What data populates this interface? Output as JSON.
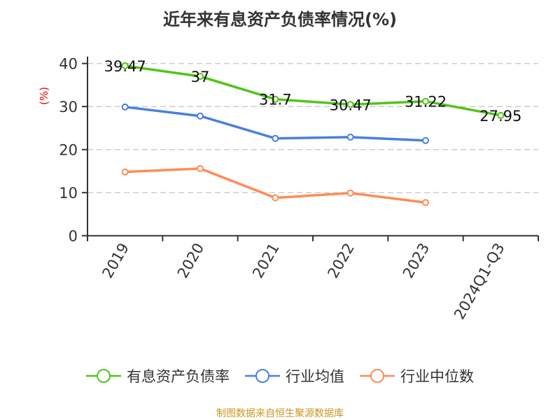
{
  "chart_data": {
    "type": "line",
    "title": "近年来有息资产负债率情况(%)",
    "ylabel": "(%)",
    "categories": [
      "2019",
      "2020",
      "2021",
      "2022",
      "2023",
      "2024Q1-Q3"
    ],
    "ylim": [
      0,
      40
    ],
    "yticks": [
      0,
      10,
      20,
      30,
      40
    ],
    "grid": true,
    "legend_position": "bottom",
    "series": [
      {
        "name": "有息资产负债率",
        "color": "#52c41a",
        "values": [
          39.47,
          37,
          31.7,
          30.47,
          31.22,
          27.95
        ],
        "labels": [
          "39.47",
          "37",
          "31.7",
          "30.47",
          "31.22",
          "27.95"
        ]
      },
      {
        "name": "行业均值",
        "color": "#4a7fe0",
        "values": [
          29.9,
          27.8,
          22.6,
          22.9,
          22.1,
          null
        ]
      },
      {
        "name": "行业中位数",
        "color": "#ff8c55",
        "values": [
          14.8,
          15.6,
          8.8,
          9.9,
          7.7,
          null
        ]
      }
    ]
  },
  "source": "制图数据来自恒生聚源数据库"
}
